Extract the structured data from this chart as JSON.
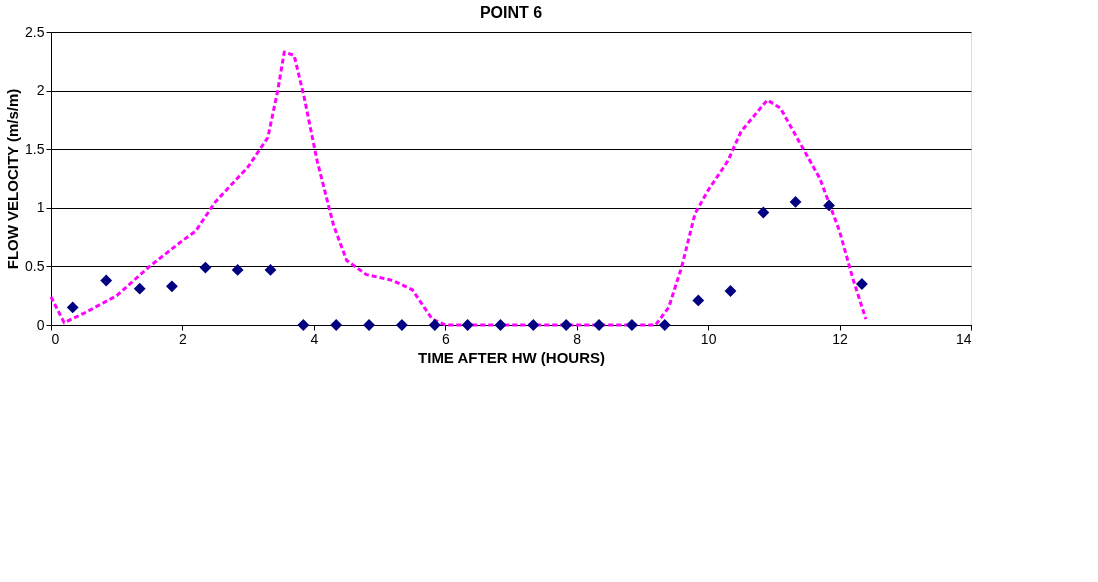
{
  "chart_data": {
    "type": "line",
    "title": "POINT 6",
    "xlabel": "TIME AFTER HW (HOURS)",
    "ylabel": "FLOW VELOCITY (m/s/m)",
    "xlim": [
      0,
      14
    ],
    "xticks": [
      0,
      2,
      4,
      6,
      8,
      10,
      12,
      14
    ],
    "ylim": [
      0,
      2.5
    ],
    "yticks": [
      0,
      0.5,
      1,
      1.5,
      2,
      2.5
    ],
    "grid": "y",
    "legend": false,
    "series": [
      {
        "type": "line",
        "line_style": "dashed",
        "marker": "none",
        "color": "#ff00ff",
        "x": [
          0,
          0.2,
          0.5,
          1,
          1.5,
          2,
          2.2,
          2.5,
          3,
          3.3,
          3.45,
          3.55,
          3.7,
          3.85,
          4.05,
          4.3,
          4.5,
          4.8,
          5.2,
          5.5,
          5.8,
          6.0,
          9.2,
          9.4,
          9.6,
          9.8,
          10.0,
          10.3,
          10.5,
          10.9,
          11.1,
          11.4,
          11.7,
          12.0,
          12.2,
          12.4
        ],
        "values": [
          0.24,
          0.02,
          0.1,
          0.25,
          0.5,
          0.72,
          0.8,
          1.05,
          1.35,
          1.6,
          2.0,
          2.33,
          2.3,
          1.95,
          1.4,
          0.85,
          0.55,
          0.43,
          0.38,
          0.3,
          0.05,
          0,
          0,
          0.15,
          0.5,
          0.95,
          1.15,
          1.4,
          1.65,
          1.92,
          1.85,
          1.55,
          1.25,
          0.8,
          0.4,
          0.05
        ]
      },
      {
        "type": "scatter",
        "marker": "diamond",
        "color": "#000080",
        "x": [
          0.33,
          0.84,
          1.35,
          1.84,
          2.35,
          2.84,
          3.34,
          3.84,
          4.34,
          4.84,
          5.34,
          5.84,
          6.34,
          6.84,
          7.34,
          7.84,
          8.34,
          8.84,
          9.34,
          9.85,
          10.34,
          10.84,
          11.33,
          11.84,
          12.34
        ],
        "values": [
          0.15,
          0.38,
          0.31,
          0.33,
          0.49,
          0.47,
          0.47,
          0,
          0,
          0,
          0,
          0,
          0,
          0,
          0,
          0,
          0,
          0,
          0,
          0.21,
          0.29,
          0.96,
          1.05,
          1.02,
          0.35
        ]
      }
    ]
  }
}
